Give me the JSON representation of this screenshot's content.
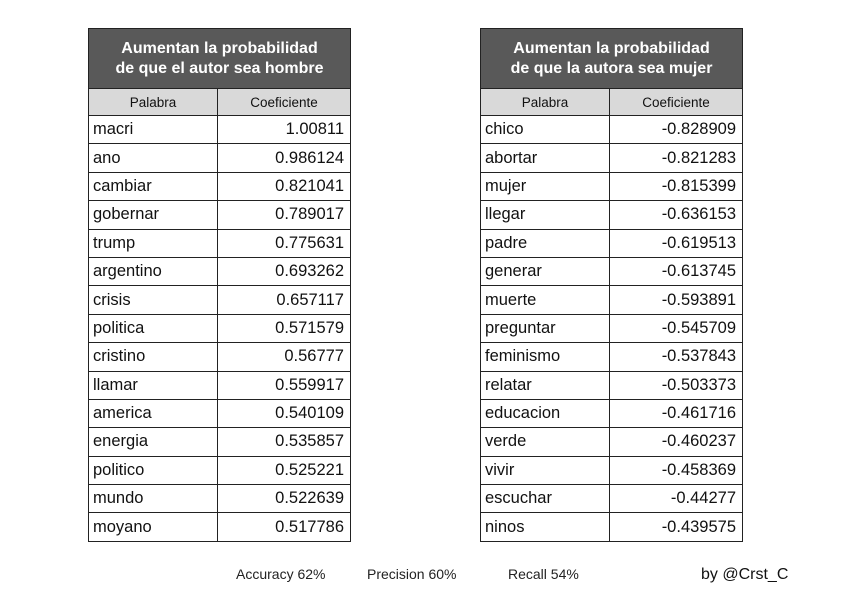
{
  "tables": [
    {
      "title_line1": "Aumentan la probabilidad",
      "title_line2": "de que el autor sea hombre",
      "col_word": "Palabra",
      "col_coef": "Coeficiente",
      "rows": [
        {
          "word": "macri",
          "coef": "1.00811"
        },
        {
          "word": "ano",
          "coef": "0.986124"
        },
        {
          "word": "cambiar",
          "coef": "0.821041"
        },
        {
          "word": "gobernar",
          "coef": "0.789017"
        },
        {
          "word": "trump",
          "coef": "0.775631"
        },
        {
          "word": "argentino",
          "coef": "0.693262"
        },
        {
          "word": "crisis",
          "coef": "0.657117"
        },
        {
          "word": "politica",
          "coef": "0.571579"
        },
        {
          "word": "cristino",
          "coef": "0.56777"
        },
        {
          "word": "llamar",
          "coef": "0.559917"
        },
        {
          "word": "america",
          "coef": "0.540109"
        },
        {
          "word": "energia",
          "coef": "0.535857"
        },
        {
          "word": "politico",
          "coef": "0.525221"
        },
        {
          "word": "mundo",
          "coef": "0.522639"
        },
        {
          "word": "moyano",
          "coef": "0.517786"
        }
      ]
    },
    {
      "title_line1": "Aumentan la probabilidad",
      "title_line2": "de que la autora sea mujer",
      "col_word": "Palabra",
      "col_coef": "Coeficiente",
      "rows": [
        {
          "word": "chico",
          "coef": "-0.828909"
        },
        {
          "word": "abortar",
          "coef": "-0.821283"
        },
        {
          "word": "mujer",
          "coef": "-0.815399"
        },
        {
          "word": "llegar",
          "coef": "-0.636153"
        },
        {
          "word": "padre",
          "coef": "-0.619513"
        },
        {
          "word": "generar",
          "coef": "-0.613745"
        },
        {
          "word": "muerte",
          "coef": "-0.593891"
        },
        {
          "word": "preguntar",
          "coef": "-0.545709"
        },
        {
          "word": "feminismo",
          "coef": "-0.537843"
        },
        {
          "word": "relatar",
          "coef": "-0.503373"
        },
        {
          "word": "educacion",
          "coef": "-0.461716"
        },
        {
          "word": "verde",
          "coef": "-0.460237"
        },
        {
          "word": "vivir",
          "coef": "-0.458369"
        },
        {
          "word": "escuchar",
          "coef": "-0.44277"
        },
        {
          "word": "ninos",
          "coef": "-0.439575"
        }
      ]
    }
  ],
  "metrics": {
    "accuracy": "Accuracy 62%",
    "precision": "Precision 60%",
    "recall": "Recall 54%"
  },
  "author": "by @Crst_C"
}
